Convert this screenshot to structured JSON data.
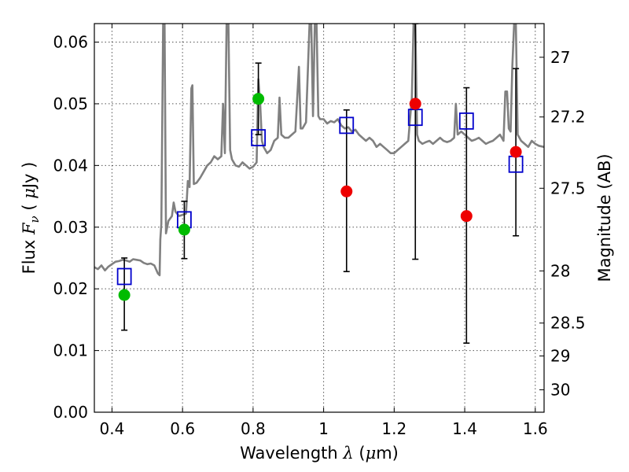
{
  "chart_data": {
    "type": "scatter",
    "title": "",
    "xlabel": {
      "prefix": "Wavelength ",
      "var": "λ",
      "unit_open": " (",
      "unit_mu": "μ",
      "unit_close": "m)"
    },
    "ylabel": {
      "prefix": "Flux ",
      "var": "F",
      "sub": "ν",
      "unit_open": " ( ",
      "unit_mu": "μ",
      "unit_close": "Jy )"
    },
    "y2label": "Magnitude (AB)",
    "xlim": [
      0.35,
      1.625
    ],
    "ylim": [
      0,
      0.063
    ],
    "grid": true,
    "x_ticks": [
      {
        "value": 0.4,
        "label": "0.4"
      },
      {
        "value": 0.6,
        "label": "0.6"
      },
      {
        "value": 0.8,
        "label": "0.8"
      },
      {
        "value": 1.0,
        "label": "1"
      },
      {
        "value": 1.2,
        "label": "1.2"
      },
      {
        "value": 1.4,
        "label": "1.4"
      },
      {
        "value": 1.6,
        "label": "1.6"
      }
    ],
    "y_ticks": [
      {
        "value": 0.0,
        "label": "0.00"
      },
      {
        "value": 0.01,
        "label": "0.01"
      },
      {
        "value": 0.02,
        "label": "0.02"
      },
      {
        "value": 0.03,
        "label": "0.03"
      },
      {
        "value": 0.04,
        "label": "0.04"
      },
      {
        "value": 0.05,
        "label": "0.05"
      },
      {
        "value": 0.06,
        "label": "0.06"
      }
    ],
    "mag_ticks": [
      {
        "value": 27.0,
        "label": "27"
      },
      {
        "value": 27.2,
        "label": "27.2"
      },
      {
        "value": 27.5,
        "label": "27.5"
      },
      {
        "value": 28.0,
        "label": "28"
      },
      {
        "value": 28.5,
        "label": "28.5"
      },
      {
        "value": 29.0,
        "label": "29"
      },
      {
        "value": 30.0,
        "label": "30"
      }
    ],
    "spectrum": {
      "color": "#808080",
      "points": [
        [
          0.35,
          0.0235
        ],
        [
          0.36,
          0.0232
        ],
        [
          0.37,
          0.0238
        ],
        [
          0.38,
          0.023
        ],
        [
          0.39,
          0.0236
        ],
        [
          0.4,
          0.024
        ],
        [
          0.41,
          0.0244
        ],
        [
          0.42,
          0.0245
        ],
        [
          0.43,
          0.0247
        ],
        [
          0.44,
          0.0246
        ],
        [
          0.45,
          0.0244
        ],
        [
          0.46,
          0.0248
        ],
        [
          0.47,
          0.0247
        ],
        [
          0.48,
          0.0246
        ],
        [
          0.49,
          0.0242
        ],
        [
          0.5,
          0.024
        ],
        [
          0.51,
          0.0241
        ],
        [
          0.52,
          0.0238
        ],
        [
          0.53,
          0.0225
        ],
        [
          0.535,
          0.0222
        ],
        [
          0.537,
          0.028
        ],
        [
          0.54,
          0.0305
        ],
        [
          0.545,
          0.063
        ],
        [
          0.549,
          0.063
        ],
        [
          0.553,
          0.029
        ],
        [
          0.56,
          0.031
        ],
        [
          0.57,
          0.0318
        ],
        [
          0.575,
          0.034
        ],
        [
          0.58,
          0.0325
        ],
        [
          0.59,
          0.0318
        ],
        [
          0.6,
          0.032
        ],
        [
          0.61,
          0.0322
        ],
        [
          0.615,
          0.0375
        ],
        [
          0.62,
          0.0365
        ],
        [
          0.625,
          0.0525
        ],
        [
          0.628,
          0.053
        ],
        [
          0.632,
          0.037
        ],
        [
          0.64,
          0.0372
        ],
        [
          0.65,
          0.038
        ],
        [
          0.66,
          0.039
        ],
        [
          0.67,
          0.04
        ],
        [
          0.68,
          0.0405
        ],
        [
          0.69,
          0.0415
        ],
        [
          0.7,
          0.041
        ],
        [
          0.71,
          0.0415
        ],
        [
          0.715,
          0.05
        ],
        [
          0.72,
          0.042
        ],
        [
          0.725,
          0.063
        ],
        [
          0.73,
          0.063
        ],
        [
          0.735,
          0.0425
        ],
        [
          0.74,
          0.041
        ],
        [
          0.75,
          0.04
        ],
        [
          0.76,
          0.0398
        ],
        [
          0.77,
          0.0405
        ],
        [
          0.78,
          0.04
        ],
        [
          0.79,
          0.0395
        ],
        [
          0.8,
          0.0398
        ],
        [
          0.81,
          0.0405
        ],
        [
          0.815,
          0.054
        ],
        [
          0.82,
          0.05
        ],
        [
          0.825,
          0.044
        ],
        [
          0.83,
          0.043
        ],
        [
          0.84,
          0.042
        ],
        [
          0.85,
          0.0425
        ],
        [
          0.86,
          0.044
        ],
        [
          0.87,
          0.0445
        ],
        [
          0.875,
          0.051
        ],
        [
          0.88,
          0.045
        ],
        [
          0.89,
          0.0445
        ],
        [
          0.9,
          0.0445
        ],
        [
          0.91,
          0.045
        ],
        [
          0.92,
          0.0455
        ],
        [
          0.93,
          0.056
        ],
        [
          0.935,
          0.046
        ],
        [
          0.94,
          0.046
        ],
        [
          0.95,
          0.047
        ],
        [
          0.96,
          0.063
        ],
        [
          0.965,
          0.063
        ],
        [
          0.97,
          0.048
        ],
        [
          0.975,
          0.063
        ],
        [
          0.98,
          0.063
        ],
        [
          0.985,
          0.048
        ],
        [
          0.99,
          0.0475
        ],
        [
          1.0,
          0.0475
        ],
        [
          1.01,
          0.0468
        ],
        [
          1.02,
          0.0472
        ],
        [
          1.03,
          0.047
        ],
        [
          1.04,
          0.0475
        ],
        [
          1.05,
          0.0465
        ],
        [
          1.06,
          0.046
        ],
        [
          1.07,
          0.0462
        ],
        [
          1.08,
          0.0455
        ],
        [
          1.09,
          0.0458
        ],
        [
          1.1,
          0.045
        ],
        [
          1.11,
          0.0445
        ],
        [
          1.12,
          0.044
        ],
        [
          1.13,
          0.0445
        ],
        [
          1.14,
          0.044
        ],
        [
          1.15,
          0.043
        ],
        [
          1.16,
          0.0435
        ],
        [
          1.17,
          0.043
        ],
        [
          1.18,
          0.0425
        ],
        [
          1.19,
          0.042
        ],
        [
          1.2,
          0.042
        ],
        [
          1.21,
          0.0425
        ],
        [
          1.22,
          0.043
        ],
        [
          1.23,
          0.0435
        ],
        [
          1.24,
          0.044
        ],
        [
          1.245,
          0.0475
        ],
        [
          1.25,
          0.051
        ],
        [
          1.255,
          0.063
        ],
        [
          1.26,
          0.063
        ],
        [
          1.265,
          0.045
        ],
        [
          1.27,
          0.044
        ],
        [
          1.28,
          0.0435
        ],
        [
          1.29,
          0.0438
        ],
        [
          1.3,
          0.044
        ],
        [
          1.31,
          0.0435
        ],
        [
          1.32,
          0.044
        ],
        [
          1.33,
          0.0445
        ],
        [
          1.34,
          0.044
        ],
        [
          1.35,
          0.0438
        ],
        [
          1.36,
          0.044
        ],
        [
          1.37,
          0.0445
        ],
        [
          1.375,
          0.05
        ],
        [
          1.38,
          0.045
        ],
        [
          1.39,
          0.0455
        ],
        [
          1.4,
          0.045
        ],
        [
          1.41,
          0.0445
        ],
        [
          1.42,
          0.044
        ],
        [
          1.43,
          0.0442
        ],
        [
          1.44,
          0.0445
        ],
        [
          1.45,
          0.044
        ],
        [
          1.46,
          0.0435
        ],
        [
          1.47,
          0.0438
        ],
        [
          1.48,
          0.044
        ],
        [
          1.49,
          0.0445
        ],
        [
          1.5,
          0.045
        ],
        [
          1.51,
          0.044
        ],
        [
          1.515,
          0.052
        ],
        [
          1.52,
          0.052
        ],
        [
          1.525,
          0.046
        ],
        [
          1.53,
          0.0455
        ],
        [
          1.535,
          0.056
        ],
        [
          1.54,
          0.063
        ],
        [
          1.545,
          0.063
        ],
        [
          1.55,
          0.045
        ],
        [
          1.56,
          0.044
        ],
        [
          1.57,
          0.0435
        ],
        [
          1.58,
          0.043
        ],
        [
          1.59,
          0.044
        ],
        [
          1.6,
          0.0435
        ],
        [
          1.61,
          0.0432
        ],
        [
          1.625,
          0.043
        ]
      ]
    },
    "model_photometry": {
      "color": "#0000cc",
      "points": [
        {
          "x": 0.435,
          "y": 0.022
        },
        {
          "x": 0.605,
          "y": 0.0312
        },
        {
          "x": 0.815,
          "y": 0.0445
        },
        {
          "x": 1.065,
          "y": 0.0465
        },
        {
          "x": 1.26,
          "y": 0.0478
        },
        {
          "x": 1.405,
          "y": 0.0472
        },
        {
          "x": 1.545,
          "y": 0.0402
        }
      ]
    },
    "detections": {
      "color": "#00bb00",
      "points": [
        {
          "x": 0.435,
          "y": 0.019,
          "lo": 0.0133,
          "hi": 0.025
        },
        {
          "x": 0.605,
          "y": 0.0296,
          "lo": 0.0249,
          "hi": 0.0342
        },
        {
          "x": 0.815,
          "y": 0.0508,
          "lo": 0.045,
          "hi": 0.0566
        }
      ]
    },
    "non_detections": {
      "color": "#ee0000",
      "points": [
        {
          "x": 1.065,
          "y": 0.0358,
          "lo": 0.0228,
          "hi": 0.049
        },
        {
          "x": 1.26,
          "y": 0.05,
          "lo": 0.0248,
          "hi": 0.063
        },
        {
          "x": 1.405,
          "y": 0.0318,
          "lo": 0.0112,
          "hi": 0.0526
        },
        {
          "x": 1.545,
          "y": 0.0422,
          "lo": 0.0286,
          "hi": 0.0557
        }
      ]
    }
  }
}
